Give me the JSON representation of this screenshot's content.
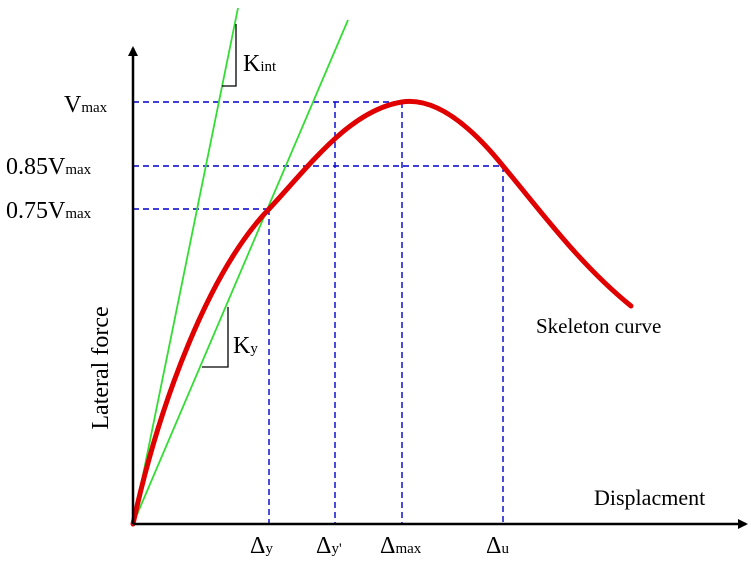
{
  "diagram": {
    "x_axis_label": "Displacment",
    "y_axis_label": "Lateral force",
    "curve_label": "Skeleton curve",
    "y_levels": [
      {
        "main": "V",
        "sub": "max"
      },
      {
        "main": "0.85V",
        "sub": "max"
      },
      {
        "main": "0.75V",
        "sub": "max"
      }
    ],
    "x_marks": [
      {
        "main": "Δ",
        "sub": "y"
      },
      {
        "main": "Δ",
        "sub": "y'"
      },
      {
        "main": "Δ",
        "sub": "max"
      },
      {
        "main": "Δ",
        "sub": "u"
      }
    ],
    "stiffness_labels": [
      {
        "main": "K",
        "sub": "int"
      },
      {
        "main": "K",
        "sub": "y"
      }
    ]
  },
  "colors": {
    "curve": "#e00000",
    "tangent_lines": "#33dd33",
    "guide_lines": "#0000cc",
    "axes": "#000000"
  }
}
